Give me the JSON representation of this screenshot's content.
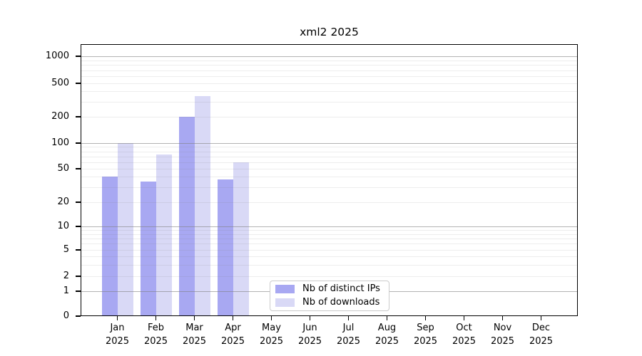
{
  "chart_data": {
    "type": "bar",
    "title": "xml2 2025",
    "categories": [
      "Jan 2025",
      "Feb 2025",
      "Mar 2025",
      "Apr 2025",
      "May 2025",
      "Jun 2025",
      "Jul 2025",
      "Aug 2025",
      "Sep 2025",
      "Oct 2025",
      "Nov 2025",
      "Dec 2025"
    ],
    "x_tick_months": [
      "Jan",
      "Feb",
      "Mar",
      "Apr",
      "May",
      "Jun",
      "Jul",
      "Aug",
      "Sep",
      "Oct",
      "Nov",
      "Dec"
    ],
    "x_tick_year": "2025",
    "series": [
      {
        "name": "Nb of distinct IPs",
        "color": "#a8a8f2",
        "values": [
          40,
          35,
          200,
          37,
          0,
          0,
          0,
          0,
          0,
          0,
          0,
          0
        ]
      },
      {
        "name": "Nb of downloads",
        "color": "#d9d9f6",
        "values": [
          100,
          73,
          350,
          60,
          0,
          0,
          0,
          0,
          0,
          0,
          0,
          0
        ]
      }
    ],
    "xlabel": "",
    "ylabel": "",
    "yscale": "log (symlog: linear 0-1, log 1-1000)",
    "yticks": [
      0,
      1,
      2,
      5,
      10,
      20,
      50,
      100,
      200,
      500,
      1000
    ],
    "ylim": [
      0,
      1400
    ],
    "grid": "horizontal, log major+minor, drawn over bars",
    "legend_position": "bottom-center-inside"
  }
}
